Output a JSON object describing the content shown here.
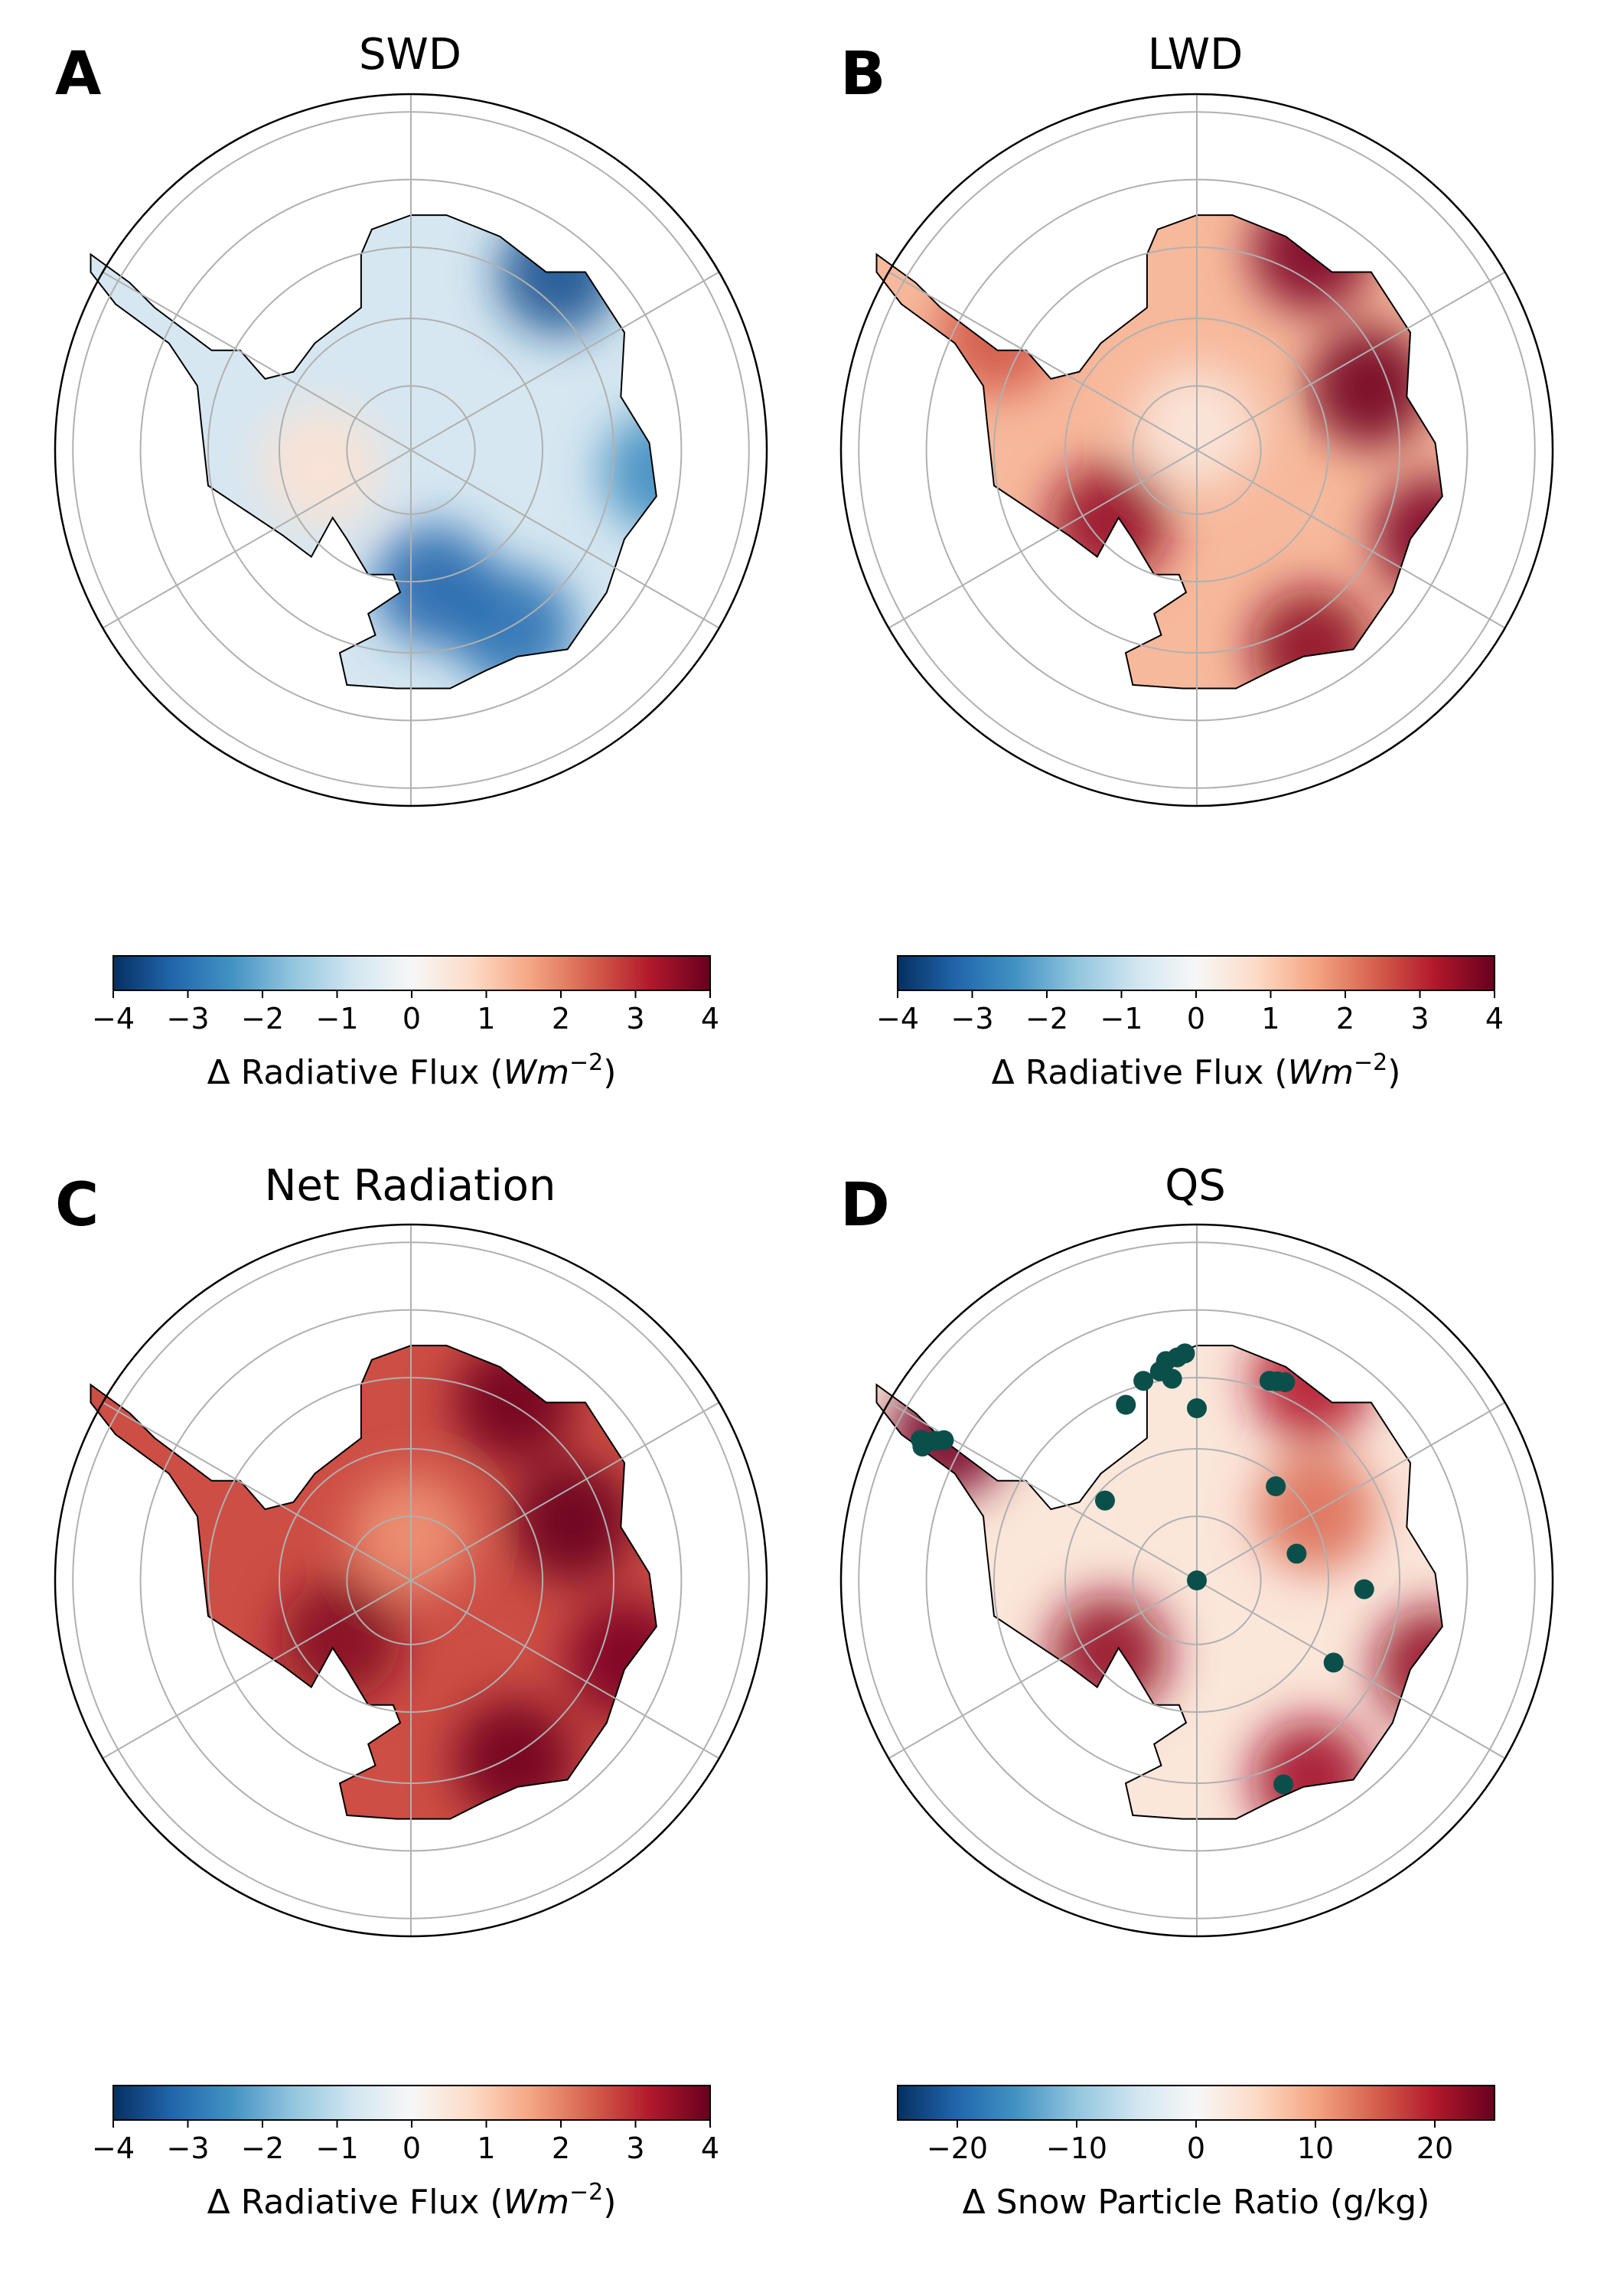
{
  "chart_data": [
    {
      "panel": "A",
      "title": "SWD",
      "type": "heatmap",
      "colorbar": {
        "label_prefix": "Δ Radiative Flux (",
        "label_unit": "Wm",
        "label_exp": "−2",
        "label_suffix": ")",
        "range": [
          -4,
          4
        ],
        "ticks": [
          -4,
          -3,
          -2,
          -1,
          0,
          1,
          2,
          3,
          4
        ],
        "tick_labels": [
          "−4",
          "−3",
          "−2",
          "−1",
          "0",
          "1",
          "2",
          "3",
          "4"
        ],
        "colormap": "RdBu_r"
      },
      "fill_value": -0.7,
      "hotspots": [
        {
          "lon": 40,
          "lat": -70,
          "value": -3.5
        },
        {
          "lon": 95,
          "lat": -68,
          "value": -2.5
        },
        {
          "lon": 150,
          "lat": -72,
          "value": -3.0
        },
        {
          "lon": 170,
          "lat": -78,
          "value": -3.2
        },
        {
          "lon": -100,
          "lat": -82,
          "value": 0.6
        }
      ]
    },
    {
      "panel": "B",
      "title": "LWD",
      "type": "heatmap",
      "colorbar": {
        "label_prefix": "Δ Radiative Flux (",
        "label_unit": "Wm",
        "label_exp": "−2",
        "label_suffix": ")",
        "range": [
          -4,
          4
        ],
        "ticks": [
          -4,
          -3,
          -2,
          -1,
          0,
          1,
          2,
          3,
          4
        ],
        "tick_labels": [
          "−4",
          "−3",
          "−2",
          "−1",
          "0",
          "1",
          "2",
          "3",
          "4"
        ],
        "colormap": "RdBu_r"
      },
      "fill_value": 1.3,
      "hotspots": [
        {
          "lon": 30,
          "lat": -70,
          "value": 3.8
        },
        {
          "lon": 70,
          "lat": -74,
          "value": 3.9
        },
        {
          "lon": 110,
          "lat": -68,
          "value": 3.8
        },
        {
          "lon": 150,
          "lat": -70,
          "value": 3.6
        },
        {
          "lon": -130,
          "lat": -80,
          "value": 3.5
        },
        {
          "lon": -60,
          "lat": -70,
          "value": 2.5
        },
        {
          "lon": 0,
          "lat": -88,
          "value": 0.4
        }
      ]
    },
    {
      "panel": "C",
      "title": "Net Radiation",
      "type": "heatmap",
      "colorbar": {
        "label_prefix": "Δ Radiative Flux (",
        "label_unit": "Wm",
        "label_exp": "−2",
        "label_suffix": ")",
        "range": [
          -4,
          4
        ],
        "ticks": [
          -4,
          -3,
          -2,
          -1,
          0,
          1,
          2,
          3,
          4
        ],
        "tick_labels": [
          "−4",
          "−3",
          "−2",
          "−1",
          "0",
          "1",
          "2",
          "3",
          "4"
        ],
        "colormap": "RdBu_r"
      },
      "fill_value": 2.6,
      "hotspots": [
        {
          "lon": 30,
          "lat": -72,
          "value": 3.9
        },
        {
          "lon": 70,
          "lat": -75,
          "value": 4.0
        },
        {
          "lon": 110,
          "lat": -70,
          "value": 3.8
        },
        {
          "lon": 150,
          "lat": -72,
          "value": 3.9
        },
        {
          "lon": -130,
          "lat": -82,
          "value": 3.7
        },
        {
          "lon": 0,
          "lat": -86,
          "value": 1.8
        }
      ]
    },
    {
      "panel": "D",
      "title": "QS",
      "type": "heatmap",
      "colorbar": {
        "label": "Δ Snow Particle Ratio (g/kg)",
        "range": [
          -25,
          25
        ],
        "ticks": [
          -20,
          -10,
          0,
          10,
          20
        ],
        "tick_labels": [
          "−20",
          "−10",
          "0",
          "10",
          "20"
        ],
        "colormap": "RdBu_r"
      },
      "fill_value": 3,
      "hotspots": [
        {
          "lon": -60,
          "lat": -65,
          "value": 24
        },
        {
          "lon": 30,
          "lat": -70,
          "value": 20
        },
        {
          "lon": 110,
          "lat": -68,
          "value": 22
        },
        {
          "lon": 150,
          "lat": -70,
          "value": 21
        },
        {
          "lon": -130,
          "lat": -80,
          "value": 22
        },
        {
          "lon": 60,
          "lat": -78,
          "value": 14
        }
      ],
      "stations": [
        {
          "lon": -5,
          "lat": -70.5
        },
        {
          "lon": -3,
          "lat": -70.2
        },
        {
          "lon": -8,
          "lat": -70.7
        },
        {
          "lon": -10,
          "lat": -71.5
        },
        {
          "lon": -15,
          "lat": -72.0
        },
        {
          "lon": -7,
          "lat": -72.3
        },
        {
          "lon": -22,
          "lat": -73.5
        },
        {
          "lon": 0,
          "lat": -75.0
        },
        {
          "lon": 20,
          "lat": -71.5
        },
        {
          "lon": 22,
          "lat": -71.3
        },
        {
          "lon": 24,
          "lat": -71.1
        },
        {
          "lon": 40,
          "lat": -79.3
        },
        {
          "lon": 75,
          "lat": -81.0
        },
        {
          "lon": 93,
          "lat": -75.4
        },
        {
          "lon": 0,
          "lat": -90.0
        },
        {
          "lon": 121,
          "lat": -76.1
        },
        {
          "lon": 157,
          "lat": -70.7
        },
        {
          "lon": -49,
          "lat": -79.4
        },
        {
          "lon": -61,
          "lat": -64.8
        },
        {
          "lon": -62,
          "lat": -64.1
        },
        {
          "lon": -64,
          "lat": -63.4
        },
        {
          "lon": -63,
          "lat": -63.0
        }
      ]
    }
  ]
}
